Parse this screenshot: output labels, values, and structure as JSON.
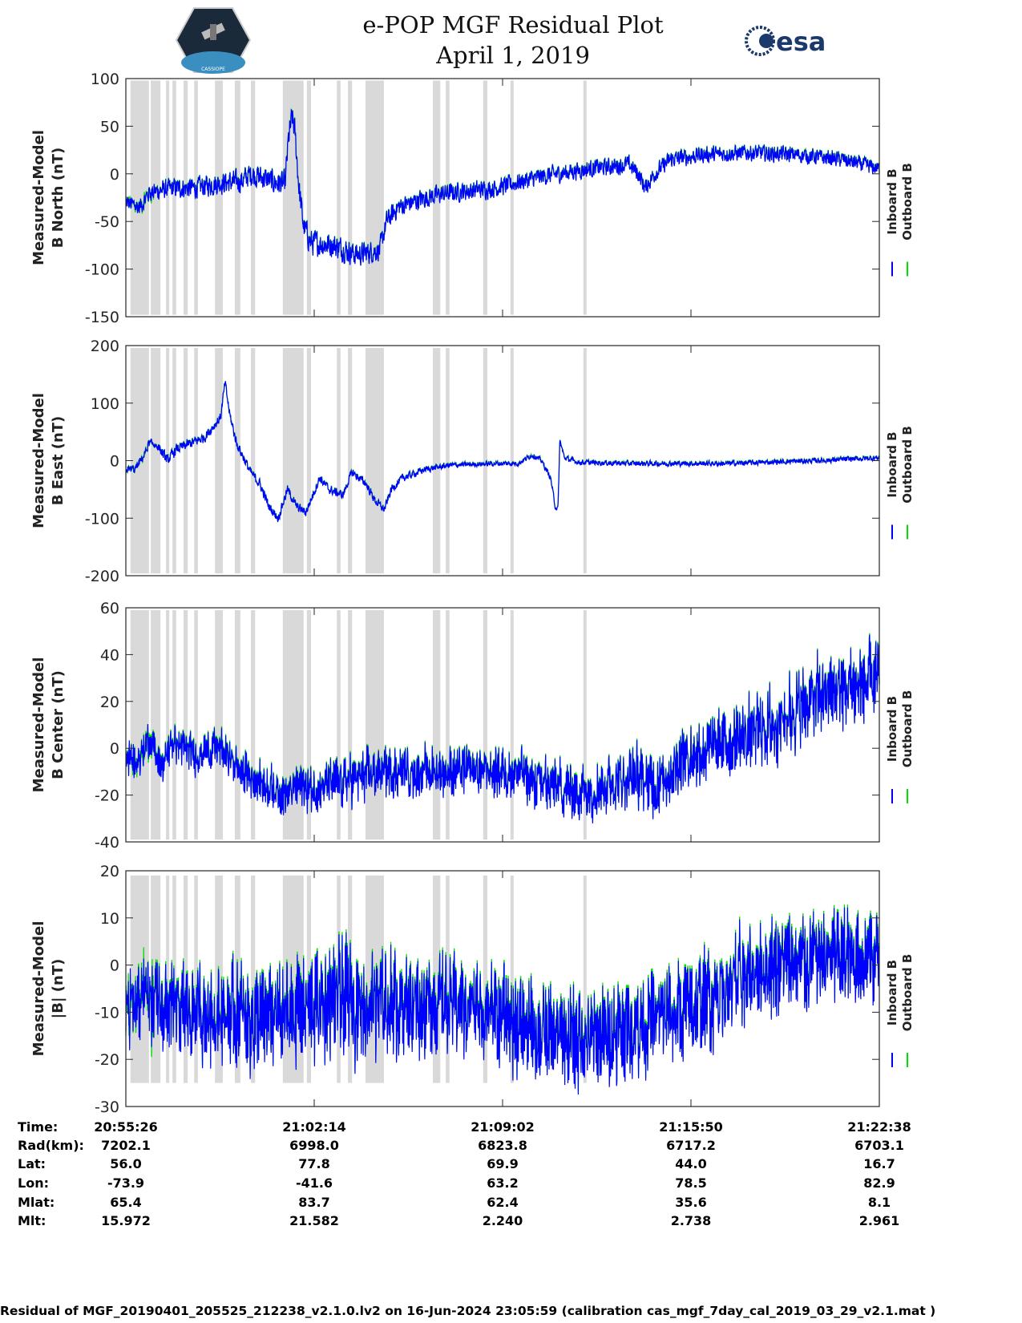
{
  "header": {
    "title_line1": "e-POP MGF Residual Plot",
    "title_line2": "April 1, 2019",
    "left_logo": "CASSIOPE",
    "right_logo": "esa"
  },
  "colors": {
    "inboard": "#0000ff",
    "outboard": "#00e000",
    "band": "#d9d9d9"
  },
  "chart_data": {
    "type": "line",
    "x_unit": "seconds after 20:55:26",
    "xlim": [
      0,
      1632
    ],
    "x_ticks": [
      0,
      408,
      816,
      1224,
      1632
    ],
    "legend": [
      "Inboard B",
      "Outboard B"
    ],
    "legend_placement": "right",
    "gap_bands": [
      [
        10,
        50
      ],
      [
        54,
        75
      ],
      [
        87,
        94
      ],
      [
        101,
        109
      ],
      [
        125,
        134
      ],
      [
        148,
        156
      ],
      [
        193,
        210
      ],
      [
        236,
        248
      ],
      [
        271,
        280
      ],
      [
        340,
        385
      ],
      [
        392,
        401
      ],
      [
        457,
        465
      ],
      [
        481,
        490
      ],
      [
        519,
        559
      ],
      [
        665,
        681
      ],
      [
        693,
        701
      ],
      [
        774,
        783
      ],
      [
        833,
        840
      ],
      [
        991,
        998
      ]
    ],
    "panels": [
      {
        "ylabel1": "Measured-Model",
        "ylabel2": "B North (nT)",
        "ylim": [
          -150,
          100
        ],
        "yticks": [
          "-150",
          "-100",
          "-50",
          "0",
          "50",
          "100"
        ],
        "band_range": [
          -148,
          98
        ],
        "trend": [
          [
            0,
            -30
          ],
          [
            30,
            -35
          ],
          [
            50,
            -20
          ],
          [
            100,
            -15
          ],
          [
            150,
            -15
          ],
          [
            200,
            -10
          ],
          [
            250,
            -8
          ],
          [
            270,
            0
          ],
          [
            300,
            -5
          ],
          [
            330,
            -10
          ],
          [
            345,
            -10
          ],
          [
            352,
            35
          ],
          [
            360,
            60
          ],
          [
            366,
            45
          ],
          [
            375,
            -15
          ],
          [
            385,
            -55
          ],
          [
            400,
            -72
          ],
          [
            450,
            -75
          ],
          [
            500,
            -85
          ],
          [
            550,
            -80
          ],
          [
            565,
            -50
          ],
          [
            590,
            -35
          ],
          [
            650,
            -25
          ],
          [
            700,
            -20
          ],
          [
            800,
            -15
          ],
          [
            900,
            -3
          ],
          [
            1000,
            5
          ],
          [
            1060,
            8
          ],
          [
            1090,
            10
          ],
          [
            1110,
            0
          ],
          [
            1125,
            -15
          ],
          [
            1145,
            0
          ],
          [
            1180,
            15
          ],
          [
            1250,
            20
          ],
          [
            1350,
            22
          ],
          [
            1450,
            20
          ],
          [
            1550,
            15
          ],
          [
            1632,
            5
          ]
        ],
        "noise": [
          [
            0,
            8
          ],
          [
            400,
            12
          ],
          [
            600,
            9
          ],
          [
            1000,
            8
          ],
          [
            1632,
            7
          ]
        ]
      },
      {
        "ylabel1": "Measured-Model",
        "ylabel2": "B East (nT)",
        "ylim": [
          -200,
          200
        ],
        "yticks": [
          "-200",
          "-100",
          "0",
          "100",
          "200"
        ],
        "band_range": [
          -196,
          196
        ],
        "trend": [
          [
            0,
            -15
          ],
          [
            20,
            -15
          ],
          [
            40,
            10
          ],
          [
            50,
            30
          ],
          [
            70,
            25
          ],
          [
            90,
            0
          ],
          [
            110,
            20
          ],
          [
            140,
            30
          ],
          [
            170,
            40
          ],
          [
            190,
            60
          ],
          [
            205,
            75
          ],
          [
            215,
            135
          ],
          [
            225,
            80
          ],
          [
            240,
            30
          ],
          [
            270,
            -20
          ],
          [
            290,
            -40
          ],
          [
            310,
            -80
          ],
          [
            330,
            -100
          ],
          [
            350,
            -50
          ],
          [
            370,
            -80
          ],
          [
            390,
            -90
          ],
          [
            420,
            -30
          ],
          [
            440,
            -50
          ],
          [
            470,
            -60
          ],
          [
            490,
            -20
          ],
          [
            520,
            -40
          ],
          [
            540,
            -70
          ],
          [
            560,
            -85
          ],
          [
            575,
            -50
          ],
          [
            600,
            -30
          ],
          [
            650,
            -15
          ],
          [
            700,
            -8
          ],
          [
            800,
            -5
          ],
          [
            850,
            -5
          ],
          [
            880,
            10
          ],
          [
            900,
            0
          ],
          [
            920,
            -30
          ],
          [
            930,
            -80
          ],
          [
            936,
            -85
          ],
          [
            940,
            35
          ],
          [
            950,
            5
          ],
          [
            980,
            -3
          ],
          [
            1100,
            -5
          ],
          [
            1300,
            -5
          ],
          [
            1500,
            0
          ],
          [
            1632,
            5
          ]
        ],
        "noise": [
          [
            0,
            6
          ],
          [
            100,
            8
          ],
          [
            600,
            6
          ],
          [
            700,
            4
          ],
          [
            1000,
            4
          ],
          [
            1632,
            4
          ]
        ]
      },
      {
        "ylabel1": "Measured-Model",
        "ylabel2": "B Center (nT)",
        "ylim": [
          -40,
          60
        ],
        "yticks": [
          "-40",
          "-20",
          "0",
          "20",
          "40",
          "60"
        ],
        "band_range": [
          -39,
          59
        ],
        "trend": [
          [
            0,
            -5
          ],
          [
            30,
            -5
          ],
          [
            50,
            5
          ],
          [
            80,
            -8
          ],
          [
            100,
            3
          ],
          [
            150,
            -3
          ],
          [
            200,
            0
          ],
          [
            230,
            -5
          ],
          [
            250,
            -10
          ],
          [
            300,
            -15
          ],
          [
            350,
            -20
          ],
          [
            380,
            -15
          ],
          [
            400,
            -18
          ],
          [
            450,
            -15
          ],
          [
            500,
            -13
          ],
          [
            550,
            -10
          ],
          [
            600,
            -10
          ],
          [
            700,
            -10
          ],
          [
            800,
            -10
          ],
          [
            860,
            -10
          ],
          [
            880,
            -15
          ],
          [
            900,
            -15
          ],
          [
            950,
            -18
          ],
          [
            1000,
            -18
          ],
          [
            1050,
            -15
          ],
          [
            1100,
            -12
          ],
          [
            1150,
            -16
          ],
          [
            1200,
            -5
          ],
          [
            1300,
            2
          ],
          [
            1400,
            10
          ],
          [
            1500,
            22
          ],
          [
            1550,
            25
          ],
          [
            1632,
            28
          ]
        ],
        "noise": [
          [
            0,
            5
          ],
          [
            300,
            6
          ],
          [
            500,
            7
          ],
          [
            800,
            7
          ],
          [
            1200,
            9
          ],
          [
            1632,
            12
          ]
        ]
      },
      {
        "ylabel1": "Measured-Model",
        "ylabel2": "|B| (nT)",
        "ylim": [
          -30,
          20
        ],
        "yticks": [
          "-30",
          "-20",
          "-10",
          "0",
          "10",
          "20"
        ],
        "band_range": [
          -25,
          19
        ],
        "trend": [
          [
            0,
            -10
          ],
          [
            40,
            -5
          ],
          [
            60,
            -8
          ],
          [
            100,
            -10
          ],
          [
            200,
            -10
          ],
          [
            300,
            -12
          ],
          [
            400,
            -9
          ],
          [
            450,
            -7
          ],
          [
            500,
            -8
          ],
          [
            600,
            -8
          ],
          [
            700,
            -8
          ],
          [
            800,
            -10
          ],
          [
            900,
            -15
          ],
          [
            1000,
            -16
          ],
          [
            1100,
            -13
          ],
          [
            1200,
            -10
          ],
          [
            1300,
            -5
          ],
          [
            1400,
            0
          ],
          [
            1500,
            1
          ],
          [
            1632,
            2
          ]
        ],
        "noise": [
          [
            0,
            6
          ],
          [
            200,
            7
          ],
          [
            400,
            8
          ],
          [
            800,
            7
          ],
          [
            1632,
            7
          ]
        ]
      }
    ]
  },
  "table": {
    "labels": [
      "Time:",
      "Rad(km):",
      "Lat:",
      "Lon:",
      "Mlat:",
      "Mlt:"
    ],
    "columns": [
      [
        "20:55:26",
        "7202.1",
        "56.0",
        "-73.9",
        "65.4",
        "15.972"
      ],
      [
        "21:02:14",
        "6998.0",
        "77.8",
        "-41.6",
        "83.7",
        "21.582"
      ],
      [
        "21:09:02",
        "6823.8",
        "69.9",
        "63.2",
        "62.4",
        "2.240"
      ],
      [
        "21:15:50",
        "6717.2",
        "44.0",
        "78.5",
        "35.6",
        "2.738"
      ],
      [
        "21:22:38",
        "6703.1",
        "16.7",
        "82.9",
        "8.1",
        "2.961"
      ]
    ]
  },
  "footer": "Residual of MGF_20190401_205525_212238_v2.1.0.lv2 on 16-Jun-2024 23:05:59 (calibration cas_mgf_7day_cal_2019_03_29_v2.1.mat )"
}
